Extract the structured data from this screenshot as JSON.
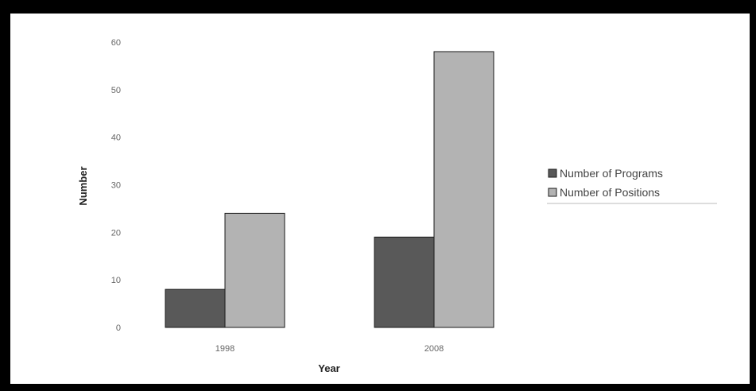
{
  "chart_data": {
    "type": "bar",
    "categories": [
      "1998",
      "2008"
    ],
    "series": [
      {
        "name": "Number of Programs",
        "values": [
          8,
          19
        ],
        "color": "#595959"
      },
      {
        "name": "Number of Positions",
        "values": [
          24,
          58
        ],
        "color": "#b3b3b3"
      }
    ],
    "title": "",
    "xlabel": "Year",
    "ylabel": "Number",
    "ylim": [
      0,
      60
    ],
    "yticks": [
      "0",
      "10",
      "20",
      "30",
      "40",
      "50",
      "60"
    ],
    "grid": false,
    "legend_position": "right"
  }
}
